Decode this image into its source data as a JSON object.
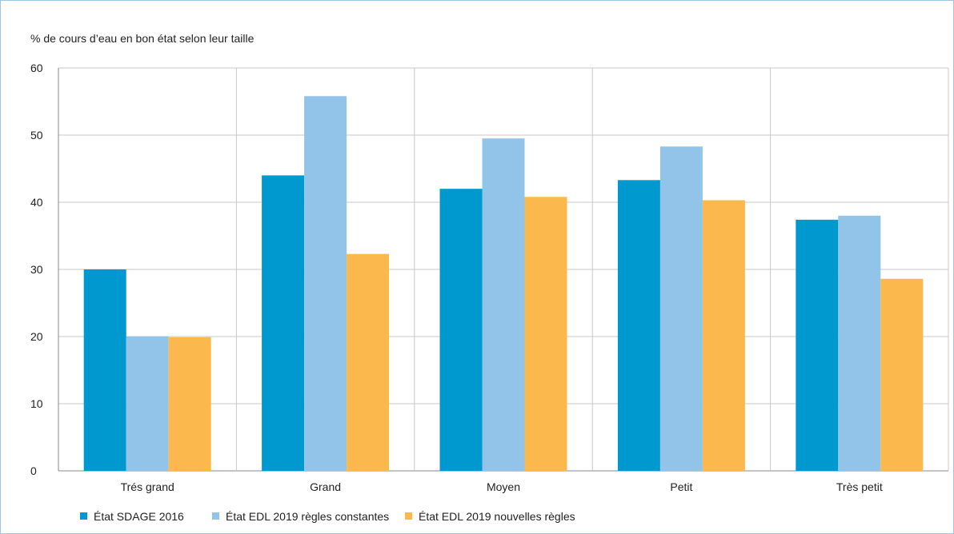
{
  "chart_data": {
    "type": "bar",
    "title": "",
    "ylabel": "% de cours d’eau en bon état selon leur taille",
    "xlabel": "",
    "ylim": [
      0,
      60
    ],
    "yticks": [
      0,
      10,
      20,
      30,
      40,
      50,
      60
    ],
    "grid": true,
    "legend_position": "bottom-left",
    "categories": [
      "Trés grand",
      "Grand",
      "Moyen",
      "Petit",
      "Très petit"
    ],
    "series": [
      {
        "name": "État SDAGE 2016",
        "color": "#0099cf",
        "values": [
          30,
          44,
          42,
          43.3,
          37.4
        ]
      },
      {
        "name": "État EDL 2019 règles constantes",
        "color": "#92c4e9",
        "values": [
          20,
          55.8,
          49.5,
          48.3,
          38
        ]
      },
      {
        "name": "État EDL 2019 nouvelles règles",
        "color": "#fbb84d",
        "values": [
          19.9,
          32.3,
          40.8,
          40.3,
          28.6
        ]
      }
    ]
  }
}
